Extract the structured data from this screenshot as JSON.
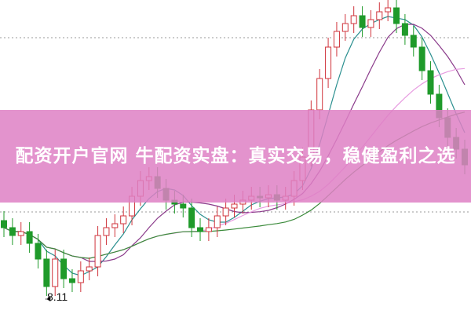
{
  "chart_data": {
    "type": "candlestick",
    "title": "",
    "xlabel": "",
    "ylabel": "",
    "ylim": [
      8.0,
      11.91
    ],
    "grid": "dotted-horizontal",
    "up_color": "#d0343c",
    "down_color": "#1f9a2a",
    "opens": [
      9.1,
      9.01,
      8.91,
      8.96,
      8.81,
      8.61,
      8.26,
      8.61,
      8.36,
      8.31,
      8.46,
      8.51,
      8.91,
      9.01,
      9.06,
      9.16,
      9.41,
      9.61,
      9.66,
      9.51,
      9.36,
      9.31,
      9.26,
      9.01,
      8.96,
      9.01,
      9.16,
      9.26,
      9.31,
      9.36,
      9.41,
      9.39,
      9.43,
      9.36,
      9.41,
      9.61,
      9.91,
      10.51,
      10.91,
      11.31,
      11.51,
      11.61,
      11.71,
      11.56,
      11.66,
      11.76,
      11.81,
      11.61,
      11.46,
      11.31,
      11.01,
      10.71,
      10.41,
      10.16,
      10.01
    ],
    "closes": [
      9.01,
      8.91,
      8.96,
      8.81,
      8.61,
      8.26,
      8.61,
      8.36,
      8.31,
      8.46,
      8.51,
      8.91,
      9.01,
      9.06,
      9.16,
      9.41,
      9.61,
      9.66,
      9.51,
      9.36,
      9.31,
      9.26,
      9.01,
      8.96,
      9.01,
      9.16,
      9.26,
      9.31,
      9.36,
      9.41,
      9.39,
      9.43,
      9.36,
      9.41,
      9.61,
      9.91,
      10.51,
      10.91,
      11.31,
      11.51,
      11.61,
      11.71,
      11.56,
      11.66,
      11.76,
      11.81,
      11.61,
      11.46,
      11.31,
      11.01,
      10.71,
      10.41,
      10.16,
      10.01,
      9.81
    ],
    "moving_averages": [
      {
        "period": 5,
        "color": "#2a8f8f"
      },
      {
        "period": 10,
        "color": "#8a3a8a"
      },
      {
        "period": 20,
        "color": "#e79be0"
      },
      {
        "period": 30,
        "color": "#3a8a3a"
      }
    ],
    "annotations": [
      {
        "text": "8.11",
        "type": "low-marker"
      }
    ]
  },
  "banner": {
    "title": "配资开户官网 牛配资实盘：真实交易，稳健盈利之选"
  }
}
